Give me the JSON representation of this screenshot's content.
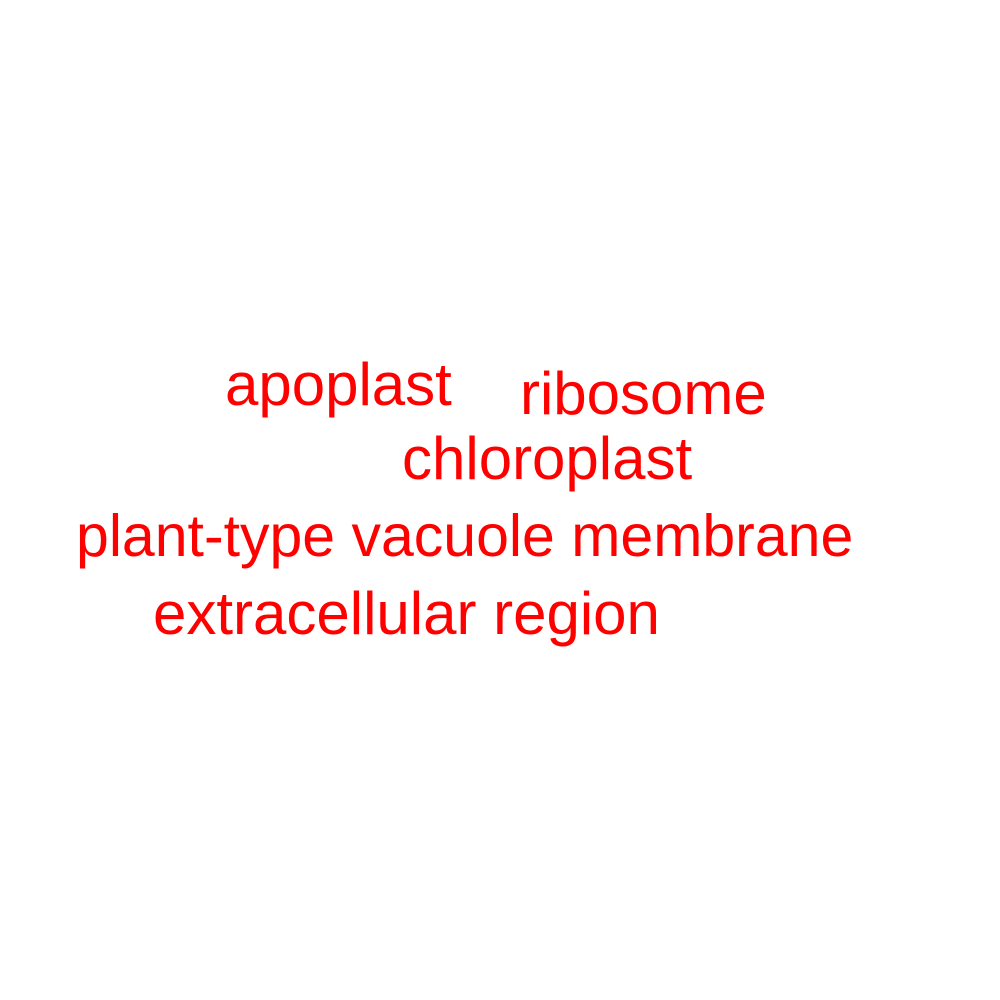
{
  "word_cloud": {
    "color": "#ff0000",
    "words": [
      "apoplast",
      "ribosome",
      "chloroplast",
      "plant-type vacuole membrane",
      "extracellular region"
    ]
  }
}
